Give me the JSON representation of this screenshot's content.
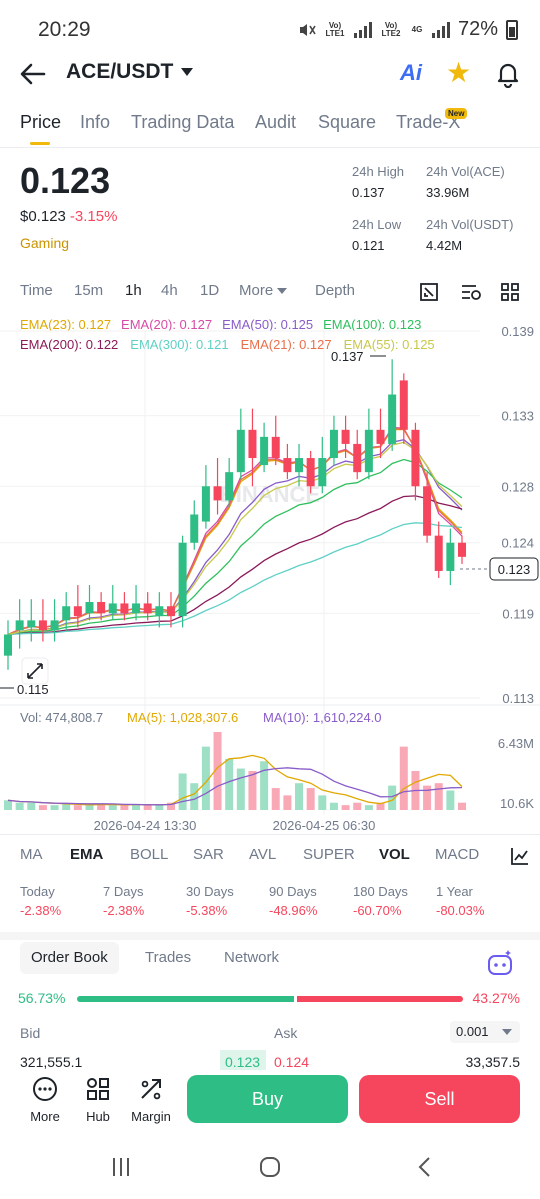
{
  "status_bar": {
    "time": "20:29",
    "battery": "72%",
    "net1": "Vo) LTE1",
    "net2": "Vo) LTE2",
    "net2_tag": "4G"
  },
  "header": {
    "pair": "ACE/USDT",
    "ai_label": "Ai"
  },
  "tabs": [
    {
      "label": "Price",
      "active": true
    },
    {
      "label": "Info"
    },
    {
      "label": "Trading Data"
    },
    {
      "label": "Audit"
    },
    {
      "label": "Square"
    },
    {
      "label": "Trade-X",
      "badge": "New"
    }
  ],
  "ticker": {
    "price": "0.123",
    "usd_price": "$0.123",
    "change": "-3.15%",
    "category": "Gaming",
    "high_label": "24h High",
    "high": "0.137",
    "vol_base_label": "24h Vol(ACE)",
    "vol_base": "33.96M",
    "low_label": "24h Low",
    "low": "0.121",
    "vol_quote_label": "24h Vol(USDT)",
    "vol_quote": "4.42M"
  },
  "chart_controls": {
    "items": [
      "Time",
      "15m",
      "1h",
      "4h",
      "1D",
      "More",
      "Depth"
    ],
    "active": "1h"
  },
  "ema_legend": [
    {
      "text": "EMA(23): 0.127",
      "color": "#e0a800"
    },
    {
      "text": "EMA(20): 0.127",
      "color": "#d84aa6"
    },
    {
      "text": "EMA(50): 0.125",
      "color": "#8a5cc9"
    },
    {
      "text": "EMA(100): 0.123",
      "color": "#2fbf5e"
    },
    {
      "text": "EMA(200): 0.122",
      "color": "#8b1a5a"
    },
    {
      "text": "EMA(300): 0.121",
      "color": "#5fd0c5"
    },
    {
      "text": "EMA(21): 0.127",
      "color": "#e8704a"
    },
    {
      "text": "EMA(55): 0.125",
      "color": "#c8c84a"
    }
  ],
  "chart": {
    "price_axis": [
      "0.139",
      "0.133",
      "0.128",
      "0.124",
      "0.119",
      "0.113"
    ],
    "current_price": "0.123",
    "high_marker": "0.137",
    "low_marker": "0.115",
    "watermark": "BINANCE",
    "vol_label": "Vol: 474,808.7",
    "ma5_label": "MA(5): 1,028,307.6",
    "ma10_label": "MA(10): 1,610,224.0",
    "vol_axis_top": "6.43M",
    "vol_axis_bottom": "10.6K",
    "time_labels": [
      "2026-04-24 13:30",
      "2026-04-25 06:30"
    ]
  },
  "chart_data": {
    "type": "candlestick",
    "series_count": 40,
    "ylim": [
      0.113,
      0.139
    ],
    "candles": [
      {
        "o": 0.116,
        "c": 0.1175,
        "h": 0.1185,
        "l": 0.115
      },
      {
        "o": 0.1178,
        "c": 0.1185,
        "h": 0.12,
        "l": 0.1165
      },
      {
        "o": 0.118,
        "c": 0.1185,
        "h": 0.12,
        "l": 0.117
      },
      {
        "o": 0.1185,
        "c": 0.1178,
        "h": 0.12,
        "l": 0.117
      },
      {
        "o": 0.1178,
        "c": 0.1185,
        "h": 0.12,
        "l": 0.117
      },
      {
        "o": 0.1185,
        "c": 0.1195,
        "h": 0.1205,
        "l": 0.1178
      },
      {
        "o": 0.1195,
        "c": 0.1188,
        "h": 0.121,
        "l": 0.118
      },
      {
        "o": 0.119,
        "c": 0.1198,
        "h": 0.121,
        "l": 0.1185
      },
      {
        "o": 0.1198,
        "c": 0.119,
        "h": 0.1205,
        "l": 0.1185
      },
      {
        "o": 0.119,
        "c": 0.1197,
        "h": 0.121,
        "l": 0.1185
      },
      {
        "o": 0.1197,
        "c": 0.119,
        "h": 0.1205,
        "l": 0.1185
      },
      {
        "o": 0.119,
        "c": 0.1197,
        "h": 0.121,
        "l": 0.1185
      },
      {
        "o": 0.1197,
        "c": 0.119,
        "h": 0.1205,
        "l": 0.1185
      },
      {
        "o": 0.1188,
        "c": 0.1195,
        "h": 0.1205,
        "l": 0.118
      },
      {
        "o": 0.1195,
        "c": 0.1188,
        "h": 0.1205,
        "l": 0.118
      },
      {
        "o": 0.1188,
        "c": 0.124,
        "h": 0.1245,
        "l": 0.118
      },
      {
        "o": 0.124,
        "c": 0.126,
        "h": 0.127,
        "l": 0.1235
      },
      {
        "o": 0.1255,
        "c": 0.128,
        "h": 0.1295,
        "l": 0.125
      },
      {
        "o": 0.128,
        "c": 0.127,
        "h": 0.13,
        "l": 0.126
      },
      {
        "o": 0.127,
        "c": 0.129,
        "h": 0.13,
        "l": 0.1265
      },
      {
        "o": 0.129,
        "c": 0.132,
        "h": 0.1335,
        "l": 0.1285
      },
      {
        "o": 0.132,
        "c": 0.13,
        "h": 0.1335,
        "l": 0.128
      },
      {
        "o": 0.1295,
        "c": 0.1315,
        "h": 0.1325,
        "l": 0.129
      },
      {
        "o": 0.1315,
        "c": 0.13,
        "h": 0.133,
        "l": 0.1295
      },
      {
        "o": 0.13,
        "c": 0.129,
        "h": 0.131,
        "l": 0.1285
      },
      {
        "o": 0.129,
        "c": 0.13,
        "h": 0.131,
        "l": 0.128
      },
      {
        "o": 0.13,
        "c": 0.128,
        "h": 0.1305,
        "l": 0.1275
      },
      {
        "o": 0.128,
        "c": 0.13,
        "h": 0.1315,
        "l": 0.1275
      },
      {
        "o": 0.13,
        "c": 0.132,
        "h": 0.133,
        "l": 0.1295
      },
      {
        "o": 0.132,
        "c": 0.131,
        "h": 0.133,
        "l": 0.13
      },
      {
        "o": 0.131,
        "c": 0.129,
        "h": 0.132,
        "l": 0.1285
      },
      {
        "o": 0.129,
        "c": 0.132,
        "h": 0.1335,
        "l": 0.1285
      },
      {
        "o": 0.132,
        "c": 0.131,
        "h": 0.1335,
        "l": 0.13
      },
      {
        "o": 0.131,
        "c": 0.1345,
        "h": 0.137,
        "l": 0.1305
      },
      {
        "o": 0.1355,
        "c": 0.132,
        "h": 0.136,
        "l": 0.131
      },
      {
        "o": 0.132,
        "c": 0.128,
        "h": 0.1325,
        "l": 0.127
      },
      {
        "o": 0.128,
        "c": 0.1245,
        "h": 0.129,
        "l": 0.124
      },
      {
        "o": 0.1245,
        "c": 0.122,
        "h": 0.1255,
        "l": 0.1215
      },
      {
        "o": 0.122,
        "c": 0.124,
        "h": 0.125,
        "l": 0.121
      },
      {
        "o": 0.124,
        "c": 0.123,
        "h": 0.1245,
        "l": 0.1225
      }
    ],
    "volumes": [
      0.4,
      0.3,
      0.3,
      0.2,
      0.2,
      0.25,
      0.2,
      0.2,
      0.25,
      0.2,
      0.2,
      0.25,
      0.2,
      0.2,
      0.3,
      1.5,
      1.1,
      2.6,
      3.2,
      2.1,
      1.7,
      1.6,
      2.0,
      0.9,
      0.6,
      1.1,
      0.9,
      0.6,
      0.3,
      0.2,
      0.3,
      0.2,
      0.3,
      1.0,
      2.6,
      1.6,
      1.0,
      1.1,
      0.8,
      0.3
    ],
    "ema_levels": {
      "EMA(23)": 0.127,
      "EMA(20)": 0.127,
      "EMA(50)": 0.125,
      "EMA(100)": 0.123,
      "EMA(200)": 0.122,
      "EMA(300)": 0.121,
      "EMA(21)": 0.127,
      "EMA(55)": 0.125
    }
  },
  "indicators": {
    "items": [
      "MA",
      "EMA",
      "BOLL",
      "SAR",
      "AVL",
      "SUPER",
      "VOL",
      "MACD"
    ],
    "active": [
      "EMA",
      "VOL"
    ]
  },
  "performance": [
    {
      "label": "Today",
      "value": "-2.38%"
    },
    {
      "label": "7 Days",
      "value": "-2.38%"
    },
    {
      "label": "30 Days",
      "value": "-5.38%"
    },
    {
      "label": "90 Days",
      "value": "-48.96%"
    },
    {
      "label": "180 Days",
      "value": "-60.70%"
    },
    {
      "label": "1 Year",
      "value": "-80.03%"
    }
  ],
  "order_book": {
    "tabs": [
      "Order Book",
      "Trades",
      "Network"
    ],
    "bid_pct": "56.73%",
    "ask_pct": "43.27%",
    "bid_share": 0.5673,
    "bid_label": "Bid",
    "ask_label": "Ask",
    "precision": "0.001",
    "row": {
      "bid_qty": "321,555.1",
      "bid_price": "0.123",
      "ask_price": "0.124",
      "ask_qty": "33,357.5"
    }
  },
  "bottom": {
    "more": "More",
    "hub": "Hub",
    "margin": "Margin",
    "buy": "Buy",
    "sell": "Sell"
  }
}
